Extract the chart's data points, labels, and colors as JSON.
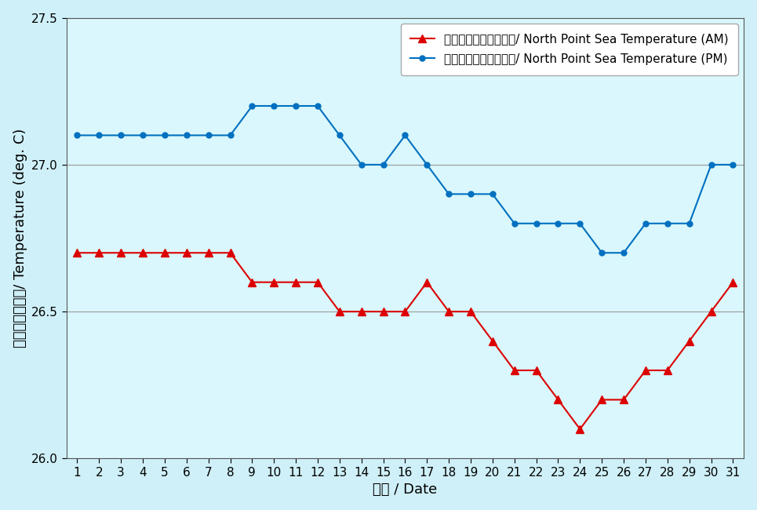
{
  "days": [
    1,
    2,
    3,
    4,
    5,
    6,
    7,
    8,
    9,
    10,
    11,
    12,
    13,
    14,
    15,
    16,
    17,
    18,
    19,
    20,
    21,
    22,
    23,
    24,
    25,
    26,
    27,
    28,
    29,
    30,
    31
  ],
  "am_temps": [
    26.7,
    26.7,
    26.7,
    26.7,
    26.7,
    26.7,
    26.7,
    26.7,
    26.6,
    26.6,
    26.6,
    26.6,
    26.5,
    26.5,
    26.5,
    26.5,
    26.6,
    26.5,
    26.5,
    26.4,
    26.3,
    26.3,
    26.2,
    26.1,
    26.2,
    26.2,
    26.3,
    26.3,
    26.4,
    26.5,
    26.6
  ],
  "pm_temps": [
    27.1,
    27.1,
    27.1,
    27.1,
    27.1,
    27.1,
    27.1,
    27.1,
    27.2,
    27.2,
    27.2,
    27.2,
    27.1,
    27.0,
    27.0,
    27.1,
    27.0,
    26.9,
    26.9,
    26.9,
    26.8,
    26.8,
    26.8,
    26.8,
    26.7,
    26.7,
    26.8,
    26.8,
    26.8,
    27.0,
    27.0
  ],
  "am_color": "#dd0000",
  "pm_color": "#0070c0",
  "bg_color": "#cff0f8",
  "plot_bg": "#d9f7fc",
  "ylim": [
    26.0,
    27.5
  ],
  "yticks": [
    26.0,
    26.5,
    27.0,
    27.5
  ],
  "xlabel": "日期 / Date",
  "ylabel": "温度（攝氏度）/ Temperature (deg. C)",
  "am_label": "北角海水溫度（上午）/ North Point Sea Temperature (AM)",
  "pm_label": "北角海水溫度（下午）/ North Point Sea Temperature (PM)",
  "grid_color": "#999999",
  "axis_label_fontsize": 13,
  "tick_fontsize": 11,
  "legend_fontsize": 11
}
